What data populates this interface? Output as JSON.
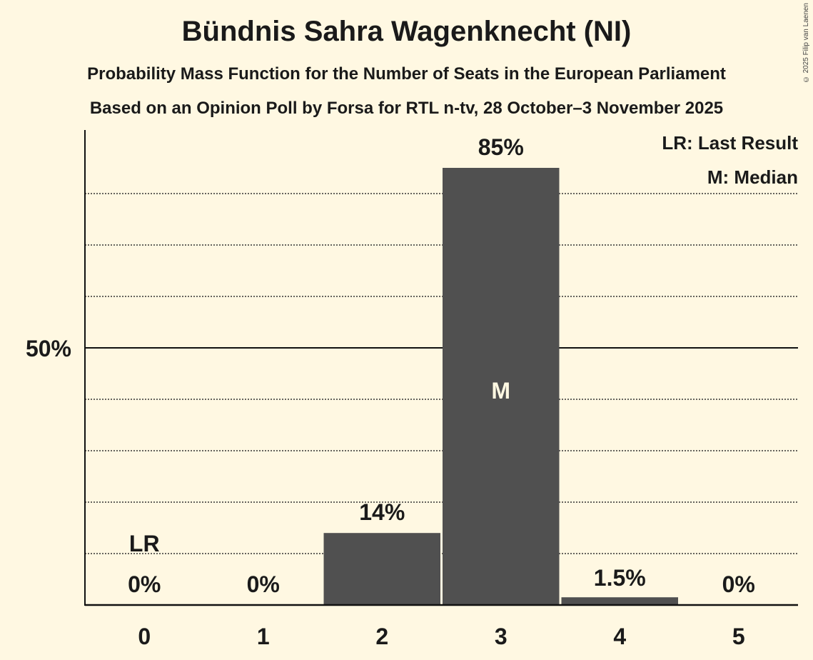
{
  "header": {
    "title": "Bündnis Sahra Wagenknecht (NI)",
    "subtitle": "Probability Mass Function for the Number of Seats in the European Parliament",
    "source": "Based on an Opinion Poll by Forsa for RTL n-tv, 28 October–3 November 2025",
    "copyright": "© 2025 Filip van Laenen"
  },
  "legend": {
    "lr": "LR: Last Result",
    "m": "M: Median"
  },
  "colors": {
    "background": "#fff8e2",
    "bar": "#505050",
    "text": "#1a1a1a"
  },
  "chart_data": {
    "type": "bar",
    "title": "Bündnis Sahra Wagenknecht (NI)",
    "subtitle": "Probability Mass Function for the Number of Seats in the European Parliament",
    "xlabel": "",
    "ylabel": "",
    "categories": [
      "0",
      "1",
      "2",
      "3",
      "4",
      "5"
    ],
    "values": [
      0,
      0,
      14,
      85,
      1.5,
      0
    ],
    "value_labels": [
      "0%",
      "0%",
      "14%",
      "85%",
      "1.5%",
      "0%"
    ],
    "ylim": [
      0,
      100
    ],
    "y_ticks": [
      {
        "value": 50,
        "label": "50%"
      }
    ],
    "grid": "dotted every 10%",
    "annotations": [
      {
        "category": "0",
        "text": "LR",
        "meaning": "Last Result"
      },
      {
        "category": "3",
        "text": "M",
        "meaning": "Median"
      }
    ],
    "legend": [
      "LR: Last Result",
      "M: Median"
    ],
    "legend_position": "top-right"
  }
}
